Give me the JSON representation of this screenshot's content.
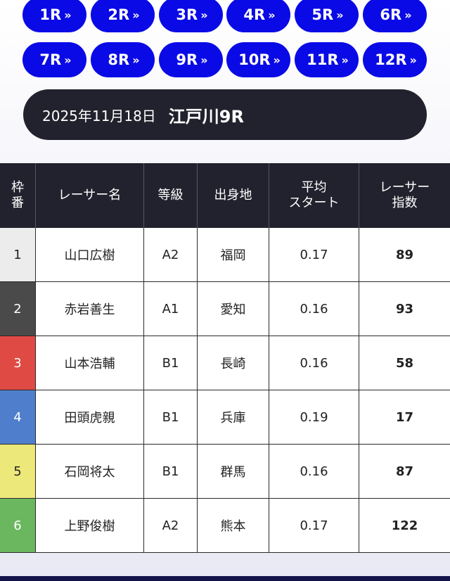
{
  "race_buttons": {
    "chevron": "»",
    "row1": [
      "1R",
      "2R",
      "3R",
      "4R",
      "5R",
      "6R"
    ],
    "row2": [
      "7R",
      "8R",
      "9R",
      "10R",
      "11R",
      "12R"
    ]
  },
  "race_info": {
    "date": "2025年11月18日",
    "venue": "江戸川9R"
  },
  "table": {
    "headers": {
      "waku": "枠\n番",
      "racer": "レーサー名",
      "grade": "等級",
      "origin": "出身地",
      "avg_start": "平均\nスタート",
      "index": "レーサー\n指数"
    },
    "rows": [
      {
        "waku": "1",
        "name": "山口広樹",
        "grade": "A2",
        "origin": "福岡",
        "avg_start": "0.17",
        "index": "89"
      },
      {
        "waku": "2",
        "name": "赤岩善生",
        "grade": "A1",
        "origin": "愛知",
        "avg_start": "0.16",
        "index": "93"
      },
      {
        "waku": "3",
        "name": "山本浩輔",
        "grade": "B1",
        "origin": "長崎",
        "avg_start": "0.16",
        "index": "58"
      },
      {
        "waku": "4",
        "name": "田頭虎親",
        "grade": "B1",
        "origin": "兵庫",
        "avg_start": "0.19",
        "index": "17"
      },
      {
        "waku": "5",
        "name": "石岡将太",
        "grade": "B1",
        "origin": "群馬",
        "avg_start": "0.16",
        "index": "87"
      },
      {
        "waku": "6",
        "name": "上野俊樹",
        "grade": "A2",
        "origin": "熊本",
        "avg_start": "0.17",
        "index": "122"
      }
    ]
  },
  "colors": {
    "race_button": "#0a0ae6",
    "dark": "#22222e",
    "waku": [
      "#ececec",
      "#4a4a4a",
      "#e04a44",
      "#4f7fcc",
      "#ede87a",
      "#6bb760"
    ],
    "waku_text": [
      "#222222",
      "#ffffff",
      "#ffffff",
      "#ffffff",
      "#222222",
      "#ffffff"
    ]
  }
}
